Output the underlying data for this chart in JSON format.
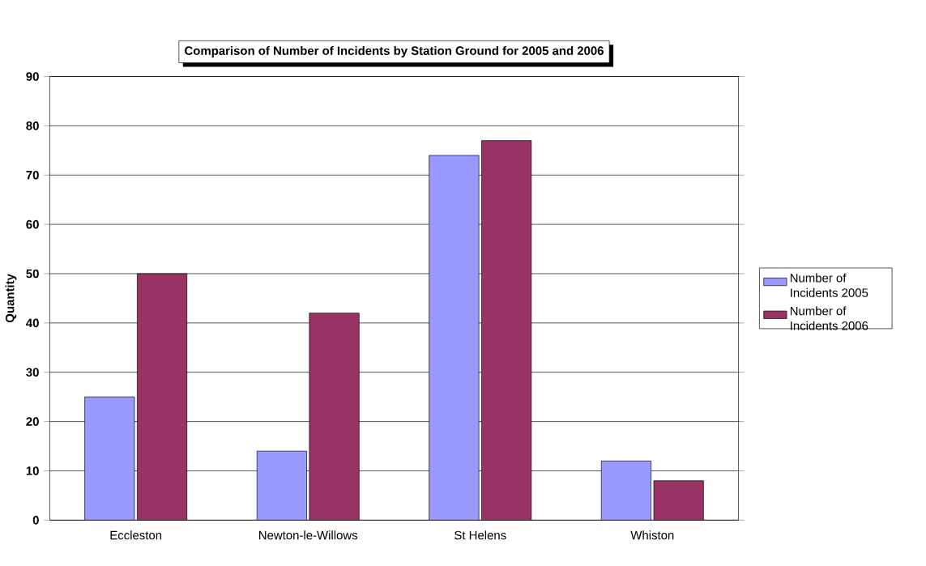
{
  "chart_data": {
    "type": "bar",
    "title": "Comparison of Number of Incidents by Station Ground for 2005 and 2006",
    "ylabel": "Quantity",
    "categories": [
      "Eccleston",
      "Newton-le-Willows",
      "St Helens",
      "Whiston"
    ],
    "series": [
      {
        "name": "Number of Incidents 2005",
        "color": "#9999ff",
        "values": [
          25,
          14,
          74,
          12
        ]
      },
      {
        "name": "Number of Incidents 2006",
        "color": "#993366",
        "values": [
          50,
          42,
          77,
          8
        ]
      }
    ],
    "ylim": [
      0,
      90
    ],
    "yticks": [
      0,
      10,
      20,
      30,
      40,
      50,
      60,
      70,
      80,
      90
    ],
    "grid": "y",
    "legend": "right"
  }
}
